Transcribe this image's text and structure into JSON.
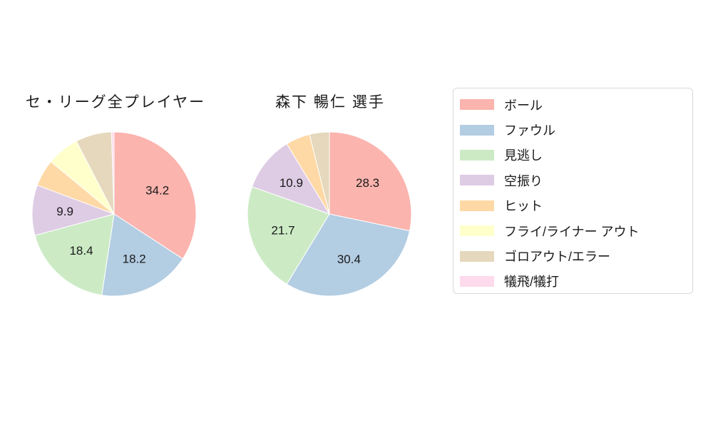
{
  "chart_data": [
    {
      "type": "pie",
      "title": "セ・リーグ全プレイヤー",
      "categories": [
        "ボール",
        "ファウル",
        "見逃し",
        "空振り",
        "ヒット",
        "フライ/ライナー アウト",
        "ゴロアウト/エラー",
        "犠飛/犠打"
      ],
      "values": [
        34.2,
        18.2,
        18.4,
        9.9,
        5.3,
        6.4,
        7.1,
        0.5
      ],
      "slice_labels": [
        "34.2",
        "18.2",
        "18.4",
        "9.9",
        null,
        null,
        null,
        null
      ],
      "start_angle": "top",
      "direction": "clockwise"
    },
    {
      "type": "pie",
      "title": "森下 暢仁 選手",
      "categories": [
        "ボール",
        "ファウル",
        "見逃し",
        "空振り",
        "ヒット",
        "フライ/ライナー アウト",
        "ゴロアウト/エラー",
        "犠飛/犠打"
      ],
      "values": [
        28.3,
        30.4,
        21.7,
        10.9,
        4.8,
        0,
        3.9,
        0
      ],
      "slice_labels": [
        "28.3",
        "30.4",
        "21.7",
        "10.9",
        null,
        null,
        null,
        null
      ],
      "start_angle": "top",
      "direction": "clockwise"
    }
  ],
  "legend": {
    "position": "right",
    "items": [
      {
        "label": "ボール",
        "color": "#fbb4ae"
      },
      {
        "label": "ファウル",
        "color": "#b3cde3"
      },
      {
        "label": "見逃し",
        "color": "#ccebc5"
      },
      {
        "label": "空振り",
        "color": "#decbe4"
      },
      {
        "label": "ヒット",
        "color": "#fed9a6"
      },
      {
        "label": "フライ/ライナー アウト",
        "color": "#ffffcc"
      },
      {
        "label": "ゴロアウト/エラー",
        "color": "#e5d8bd"
      },
      {
        "label": "犠飛/犠打",
        "color": "#fddaec"
      }
    ]
  },
  "style": {
    "wedge_stroke": "#ffffff",
    "label_color": "#1a1a1a",
    "label_radius_ratio": 0.6
  }
}
